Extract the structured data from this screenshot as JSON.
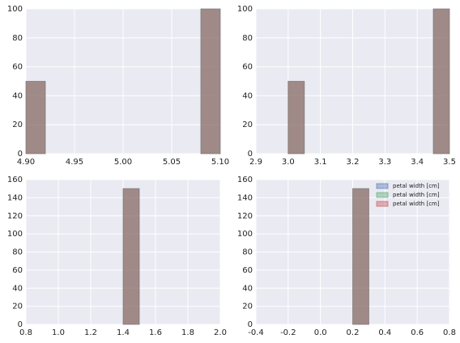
{
  "chart_data": [
    {
      "type": "histogram",
      "bins": [
        4.9,
        4.92,
        4.94,
        4.96,
        4.98,
        5.0,
        5.02,
        5.04,
        5.06,
        5.08,
        5.1
      ],
      "series": [
        {
          "color": "#4c72b0",
          "values": [
            50,
            0,
            0,
            0,
            0,
            0,
            0,
            0,
            0,
            100
          ]
        },
        {
          "color": "#55a868",
          "values": [
            50,
            0,
            0,
            0,
            0,
            0,
            0,
            0,
            0,
            100
          ]
        },
        {
          "color": "#c44e52",
          "values": [
            50,
            0,
            0,
            0,
            0,
            0,
            0,
            0,
            0,
            100
          ]
        }
      ],
      "xlim": [
        4.9,
        5.1
      ],
      "ylim": [
        0,
        100
      ],
      "xticks": [
        {
          "value": 4.9,
          "label": "4.90"
        },
        4.95,
        {
          "value": 5.0,
          "label": "5.00"
        },
        5.05,
        {
          "value": 5.1,
          "label": "5.10"
        }
      ],
      "yticks": [
        0,
        20,
        40,
        60,
        80,
        100
      ],
      "grid": true
    },
    {
      "type": "histogram",
      "bins": [
        3.0,
        3.05,
        3.1,
        3.15,
        3.2,
        3.25,
        3.3,
        3.35,
        3.4,
        3.45,
        3.5
      ],
      "series": [
        {
          "color": "#4c72b0",
          "values": [
            50,
            0,
            0,
            0,
            0,
            0,
            0,
            0,
            0,
            100
          ]
        },
        {
          "color": "#55a868",
          "values": [
            50,
            0,
            0,
            0,
            0,
            0,
            0,
            0,
            0,
            100
          ]
        },
        {
          "color": "#c44e52",
          "values": [
            50,
            0,
            0,
            0,
            0,
            0,
            0,
            0,
            0,
            100
          ]
        }
      ],
      "xlim": [
        2.9,
        3.5
      ],
      "ylim": [
        0,
        100
      ],
      "xticks": [
        2.9,
        {
          "value": 3.0,
          "label": "3.0"
        },
        3.1,
        3.2,
        3.3,
        3.4,
        3.5
      ],
      "yticks": [
        0,
        20,
        40,
        60,
        80,
        100
      ],
      "grid": true
    },
    {
      "type": "histogram",
      "bins": [
        0.9,
        1.0,
        1.1,
        1.2,
        1.3,
        1.4,
        1.5,
        1.6,
        1.7,
        1.8,
        1.9
      ],
      "series": [
        {
          "color": "#4c72b0",
          "values": [
            0,
            0,
            0,
            0,
            0,
            150,
            0,
            0,
            0,
            0
          ]
        },
        {
          "color": "#55a868",
          "values": [
            0,
            0,
            0,
            0,
            0,
            150,
            0,
            0,
            0,
            0
          ]
        },
        {
          "color": "#c44e52",
          "values": [
            0,
            0,
            0,
            0,
            0,
            150,
            0,
            0,
            0,
            0
          ]
        }
      ],
      "xlim": [
        0.8,
        2.0
      ],
      "ylim": [
        0,
        160
      ],
      "xticks": [
        0.8,
        {
          "value": 1.0,
          "label": "1.0"
        },
        1.2,
        1.4,
        1.6,
        1.8,
        {
          "value": 2.0,
          "label": "2.0"
        }
      ],
      "yticks": [
        0,
        20,
        40,
        60,
        80,
        100,
        120,
        140,
        160
      ],
      "grid": true
    },
    {
      "type": "histogram",
      "bins": [
        -0.3,
        -0.2,
        -0.1,
        0.0,
        0.1,
        0.2,
        0.3,
        0.4,
        0.5,
        0.6,
        0.7
      ],
      "series": [
        {
          "name": "petal width [cm]",
          "color": "#4c72b0",
          "values": [
            0,
            0,
            0,
            0,
            0,
            150,
            0,
            0,
            0,
            0
          ]
        },
        {
          "name": "petal width [cm]",
          "color": "#55a868",
          "values": [
            0,
            0,
            0,
            0,
            0,
            150,
            0,
            0,
            0,
            0
          ]
        },
        {
          "name": "petal width [cm]",
          "color": "#c44e52",
          "values": [
            0,
            0,
            0,
            0,
            0,
            150,
            0,
            0,
            0,
            0
          ]
        }
      ],
      "xlim": [
        -0.4,
        0.8
      ],
      "ylim": [
        0,
        160
      ],
      "xticks": [
        -0.4,
        -0.2,
        {
          "value": 0.0,
          "label": "0.0"
        },
        0.2,
        0.4,
        0.6,
        0.8
      ],
      "yticks": [
        0,
        20,
        40,
        60,
        80,
        100,
        120,
        140,
        160
      ],
      "grid": true,
      "legend": "upper right"
    }
  ]
}
